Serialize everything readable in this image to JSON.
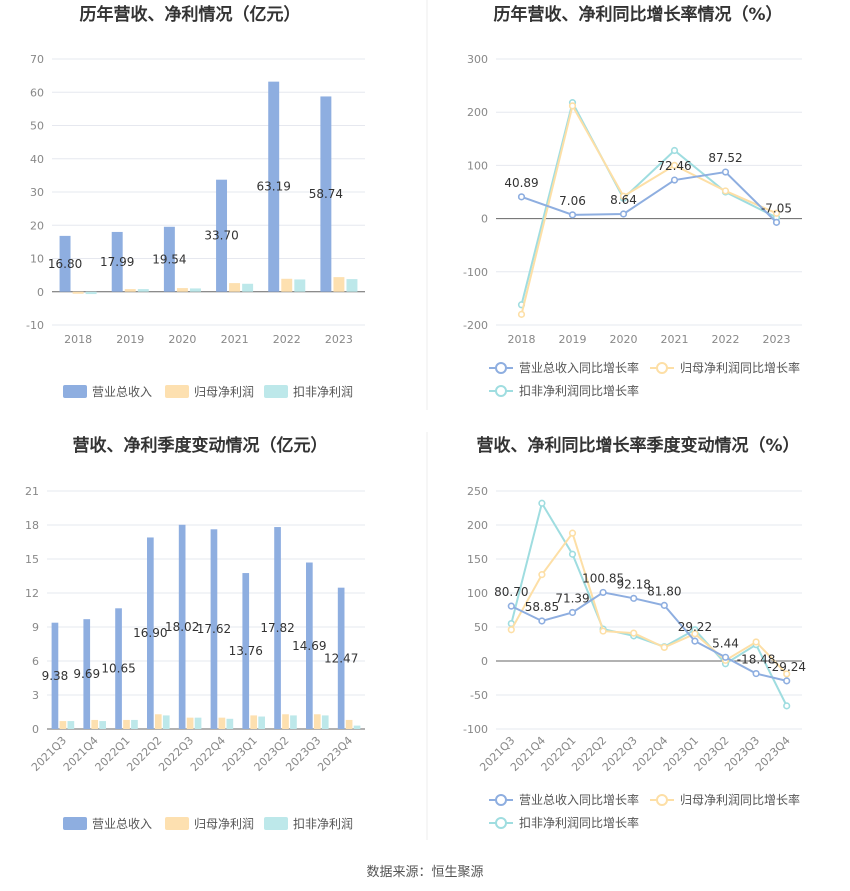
{
  "footer": "数据来源：恒生聚源",
  "chart_data": [
    {
      "type": "bar",
      "title": "历年营收、净利情况（亿元）",
      "categories": [
        "2018",
        "2019",
        "2020",
        "2021",
        "2022",
        "2023"
      ],
      "ylim": [
        -10,
        70
      ],
      "yticks": [
        -10,
        0,
        10,
        20,
        30,
        40,
        50,
        60,
        70
      ],
      "series": [
        {
          "name": "营业总收入",
          "color": "#8eaee0",
          "values": [
            16.8,
            17.99,
            19.54,
            33.7,
            63.19,
            58.74
          ],
          "labels": [
            "16.80",
            "17.99",
            "19.54",
            "33.70",
            "63.19",
            "58.74"
          ]
        },
        {
          "name": "归母净利润",
          "color": "#fde0b0",
          "values": [
            -0.6,
            0.8,
            1.1,
            2.6,
            3.9,
            4.4
          ]
        },
        {
          "name": "扣非净利润",
          "color": "#bde8ea",
          "values": [
            -0.7,
            0.8,
            1.0,
            2.4,
            3.7,
            3.8
          ]
        }
      ]
    },
    {
      "type": "line",
      "title": "历年营收、净利同比增长率情况（%）",
      "categories": [
        "2018",
        "2019",
        "2020",
        "2021",
        "2022",
        "2023"
      ],
      "ylim": [
        -200,
        300
      ],
      "yticks": [
        -200,
        -100,
        0,
        100,
        200,
        300
      ],
      "series": [
        {
          "name": "营业总收入同比增长率",
          "color": "#8eaee0",
          "values": [
            40.89,
            7.06,
            8.64,
            72.46,
            87.52,
            -7.05
          ],
          "labels": [
            "40.89",
            "7.06",
            "8.64",
            "72.46",
            "87.52",
            "-7.05"
          ]
        },
        {
          "name": "归母净利润同比增长率",
          "color": "#fddfa6",
          "values": [
            -180,
            212,
            42,
            100,
            52,
            10
          ]
        },
        {
          "name": "扣非净利润同比增长率",
          "color": "#9fdde0",
          "values": [
            -162,
            218,
            38,
            128,
            50,
            2
          ]
        }
      ]
    },
    {
      "type": "bar",
      "title": "营收、净利季度变动情况（亿元）",
      "categories": [
        "2021Q3",
        "2021Q4",
        "2022Q1",
        "2022Q2",
        "2022Q3",
        "2022Q4",
        "2023Q1",
        "2023Q2",
        "2023Q3",
        "2023Q4"
      ],
      "ylim": [
        0,
        21
      ],
      "yticks": [
        0,
        3,
        6,
        9,
        12,
        15,
        18,
        21
      ],
      "series": [
        {
          "name": "营业总收入",
          "color": "#8eaee0",
          "values": [
            9.38,
            9.69,
            10.65,
            16.9,
            18.02,
            17.62,
            13.76,
            17.82,
            14.69,
            12.47
          ],
          "labels": [
            "9.38",
            "9.69",
            "10.65",
            "16.90",
            "18.02",
            "17.62",
            "13.76",
            "17.82",
            "14.69",
            "12.47"
          ]
        },
        {
          "name": "归母净利润",
          "color": "#fde0b0",
          "values": [
            0.7,
            0.8,
            0.8,
            1.3,
            1.0,
            1.0,
            1.2,
            1.3,
            1.3,
            0.8
          ]
        },
        {
          "name": "扣非净利润",
          "color": "#bde8ea",
          "values": [
            0.7,
            0.7,
            0.8,
            1.2,
            1.0,
            0.9,
            1.1,
            1.2,
            1.2,
            0.3
          ]
        }
      ]
    },
    {
      "type": "line",
      "title": "营收、净利同比增长率季度变动情况（%）",
      "categories": [
        "2021Q3",
        "2021Q4",
        "2022Q1",
        "2022Q2",
        "2022Q3",
        "2022Q4",
        "2023Q1",
        "2023Q2",
        "2023Q3",
        "2023Q4"
      ],
      "ylim": [
        -100,
        250
      ],
      "yticks": [
        -100,
        -50,
        0,
        50,
        100,
        150,
        200,
        250
      ],
      "series": [
        {
          "name": "营业总收入同比增长率",
          "color": "#8eaee0",
          "values": [
            80.7,
            58.85,
            71.39,
            100.85,
            92.18,
            81.8,
            29.22,
            5.44,
            -18.48,
            -29.24
          ],
          "labels": [
            "80.70",
            "58.85",
            "71.39",
            "100.85",
            "92.18",
            "81.80",
            "29.22",
            "5.44",
            "-18.48",
            "-29.24"
          ]
        },
        {
          "name": "归母净利润同比增长率",
          "color": "#fddfa6",
          "values": [
            46,
            127,
            188,
            44,
            41,
            20,
            40,
            1,
            28,
            -19
          ]
        },
        {
          "name": "扣非净利润同比增长率",
          "color": "#9fdde0",
          "values": [
            55,
            232,
            157,
            47,
            37,
            21,
            46,
            -4,
            24,
            -66
          ]
        }
      ]
    }
  ]
}
